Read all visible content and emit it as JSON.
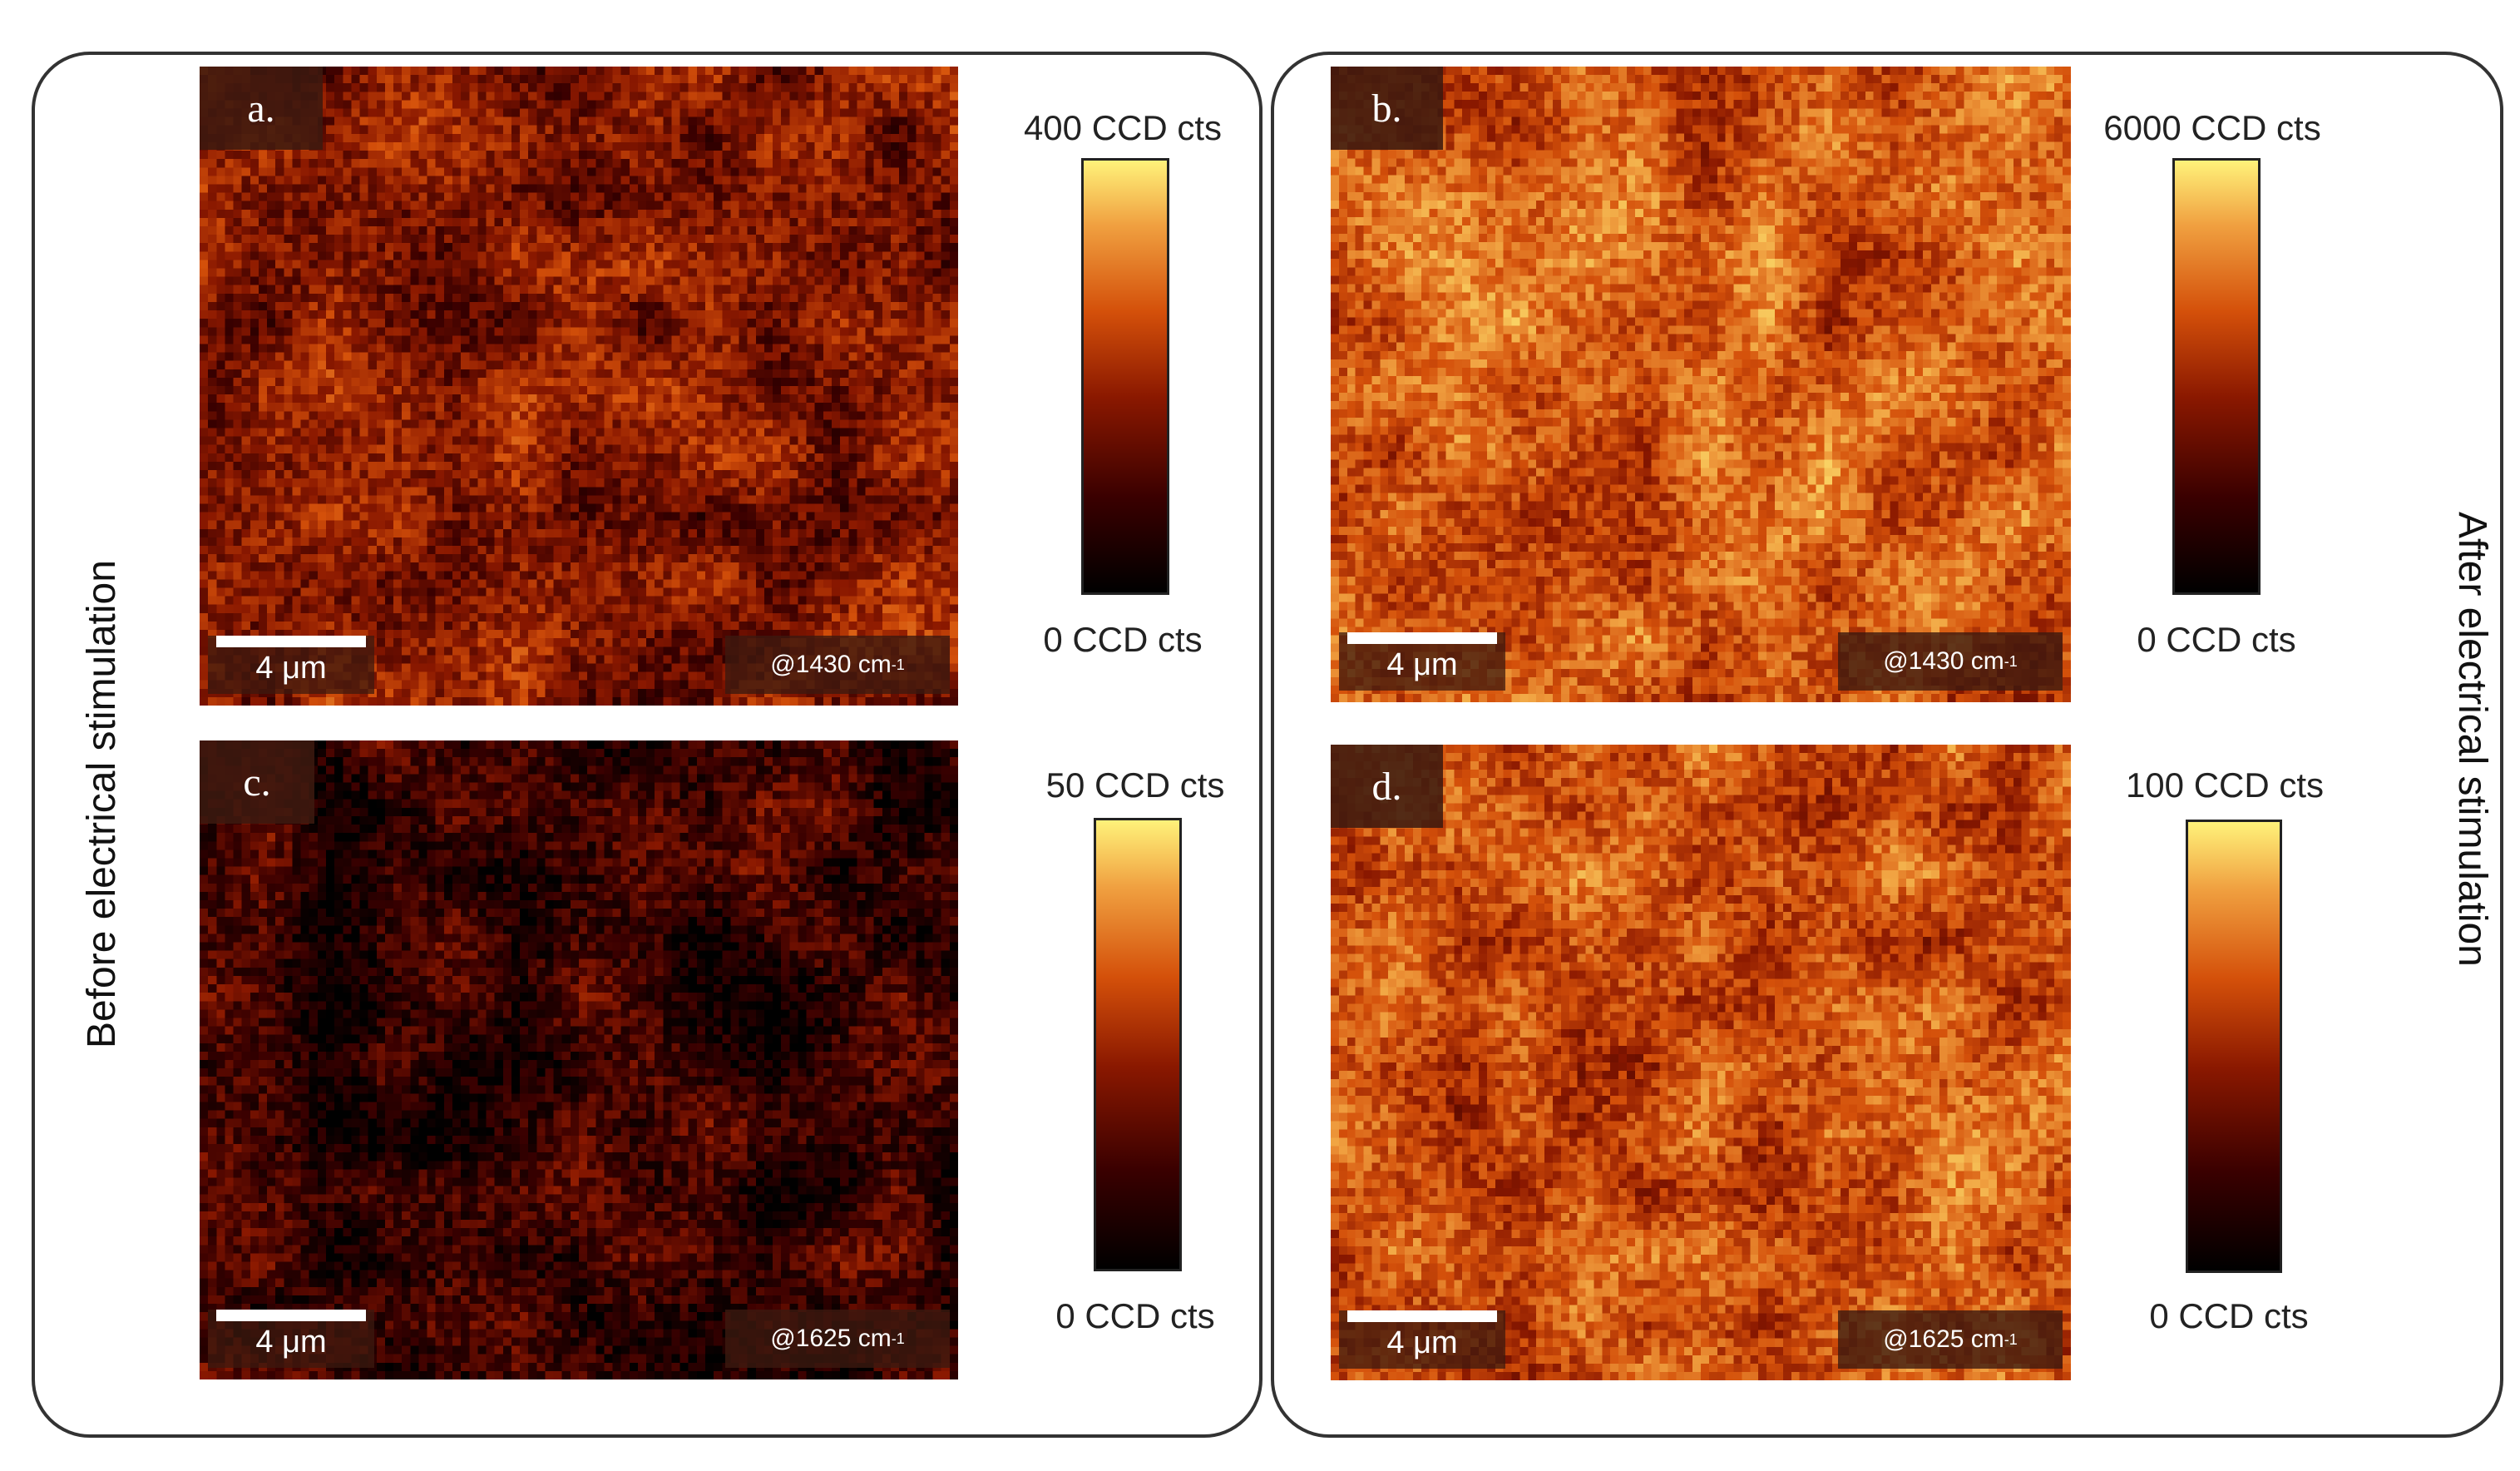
{
  "side_labels": {
    "left": "Before electrical stimulation",
    "right": "After electrical stimulation"
  },
  "scalebar_label": "4 μm",
  "panels": [
    {
      "letter": "a.",
      "wavenumber": "@1430 cm",
      "wavenumber_unit_exp": "-1",
      "cbar_max": "400 CCD cts",
      "cbar_min": "0 CCD cts",
      "mean_level": 0.38
    },
    {
      "letter": "b.",
      "wavenumber": "@1430 cm",
      "wavenumber_unit_exp": "-1",
      "cbar_max": "6000 CCD cts",
      "cbar_min": "0 CCD cts",
      "mean_level": 0.62
    },
    {
      "letter": "c.",
      "wavenumber": "@1625 cm",
      "wavenumber_unit_exp": "-1",
      "cbar_max": "50 CCD cts",
      "cbar_min": "0 CCD cts",
      "mean_level": 0.18
    },
    {
      "letter": "d.",
      "wavenumber": "@1625 cm",
      "wavenumber_unit_exp": "-1",
      "cbar_max": "100 CCD cts",
      "cbar_min": "0 CCD cts",
      "mean_level": 0.6
    }
  ],
  "colormap": [
    "#000000",
    "#3a0000",
    "#8a1800",
    "#d4500a",
    "#f0a040",
    "#fff27a"
  ]
}
